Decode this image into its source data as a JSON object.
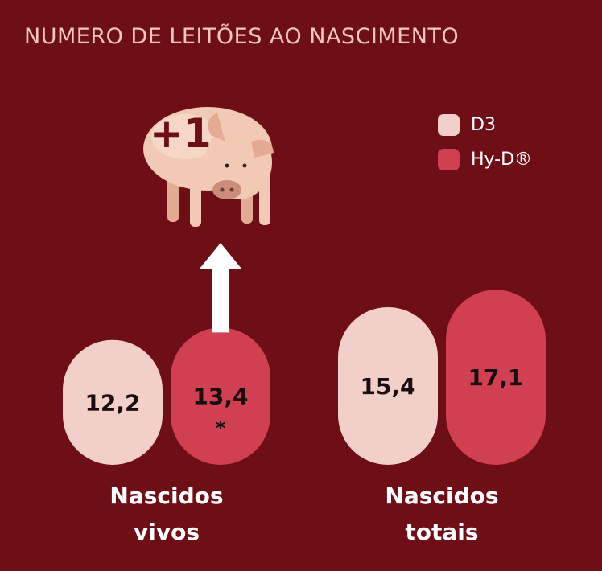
{
  "title": "NUMERO DE LEITÕES AO NASCIMENTO",
  "badge": "+1",
  "colors": {
    "background": "#6e0f18",
    "D3": "#f3cfc9",
    "Hy-D": "#d03f52",
    "title": "#f3c7c0"
  },
  "legend": [
    {
      "name": "D3",
      "color": "#f3cfc9"
    },
    {
      "name": "Hy-D®",
      "color": "#d03f52"
    }
  ],
  "chart_data": {
    "type": "bar",
    "title": "NUMERO DE LEITÕES AO NASCIMENTO",
    "categories": [
      [
        "Nascidos",
        "vivos"
      ],
      [
        "Nascidos",
        "totais"
      ]
    ],
    "series": [
      {
        "name": "D3",
        "values": [
          12.2,
          15.4
        ],
        "labels": [
          "12,2",
          "15,4"
        ],
        "markers": [
          "",
          ""
        ]
      },
      {
        "name": "Hy-D®",
        "values": [
          13.4,
          17.1
        ],
        "labels": [
          "13,4",
          "17,1"
        ],
        "markers": [
          "*",
          ""
        ]
      }
    ],
    "annotation": "+1",
    "legend_position": "top-right"
  }
}
